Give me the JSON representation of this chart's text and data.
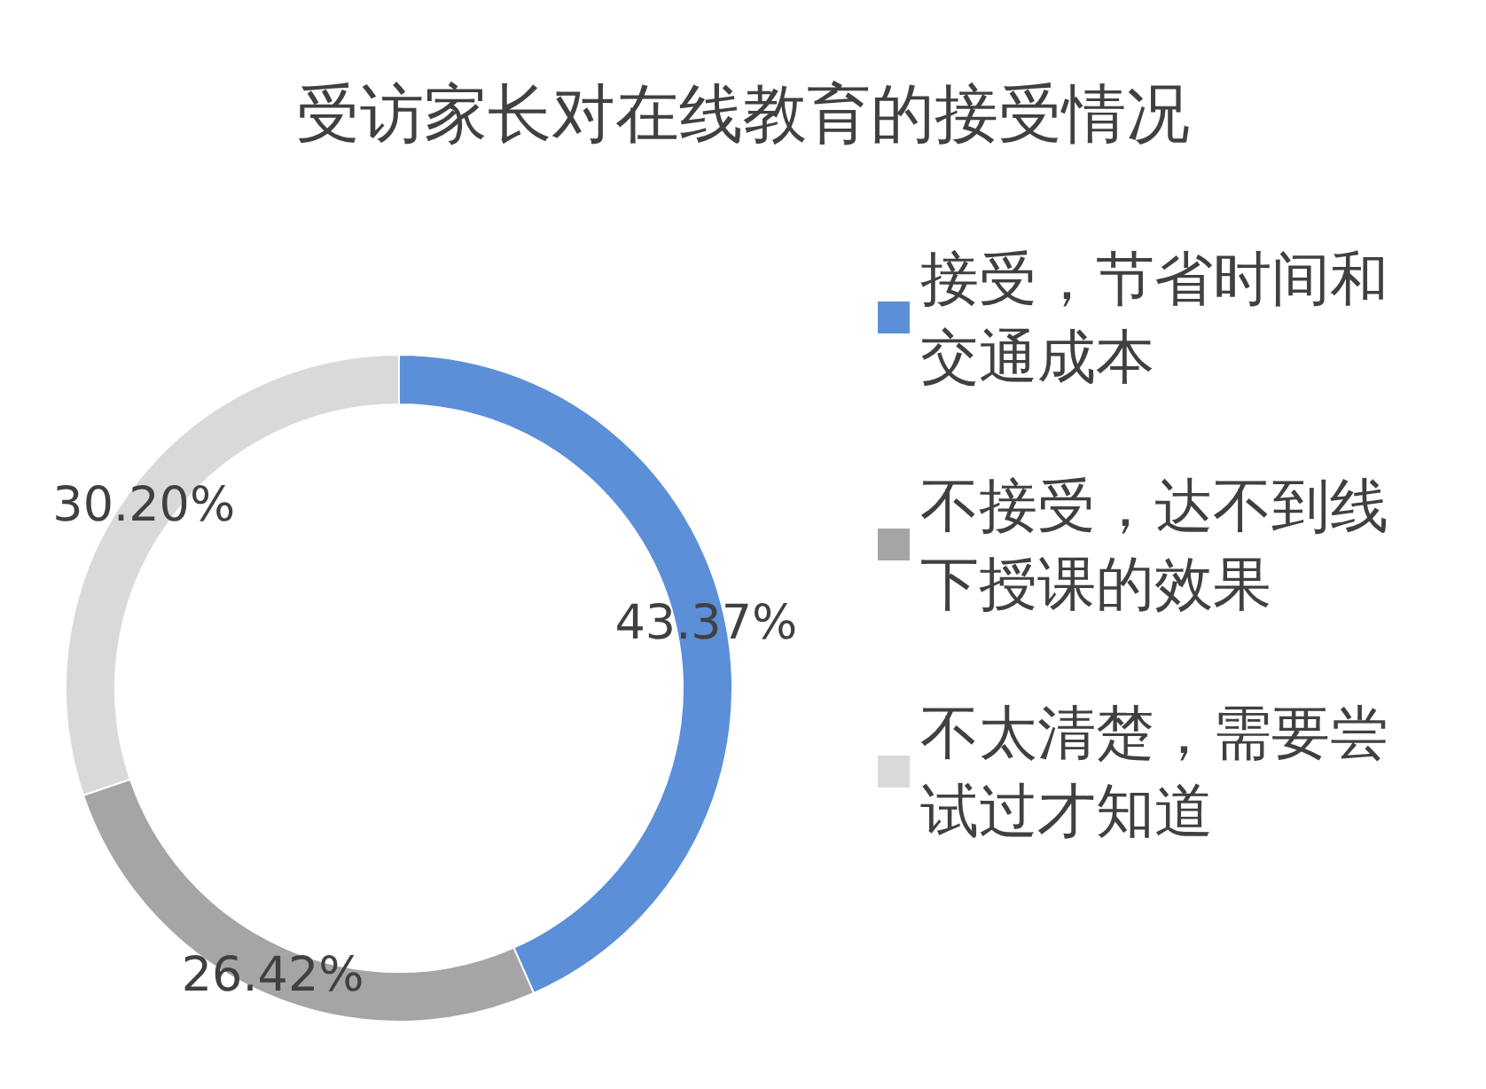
{
  "chart_data": {
    "type": "donut",
    "title": "受访家长对在线教育的接受情况",
    "categories": [
      "接受，节省时间和交通成本",
      "不接受，达不到线下授课的效果",
      "不太清楚，需要尝试过才知道"
    ],
    "values": [
      43.37,
      26.42,
      30.2
    ],
    "colors": [
      "#5b8fd8",
      "#a5a5a5",
      "#d9d9d9"
    ],
    "value_labels": [
      "43.37%",
      "26.42%",
      "30.20%"
    ],
    "legend": "right"
  }
}
